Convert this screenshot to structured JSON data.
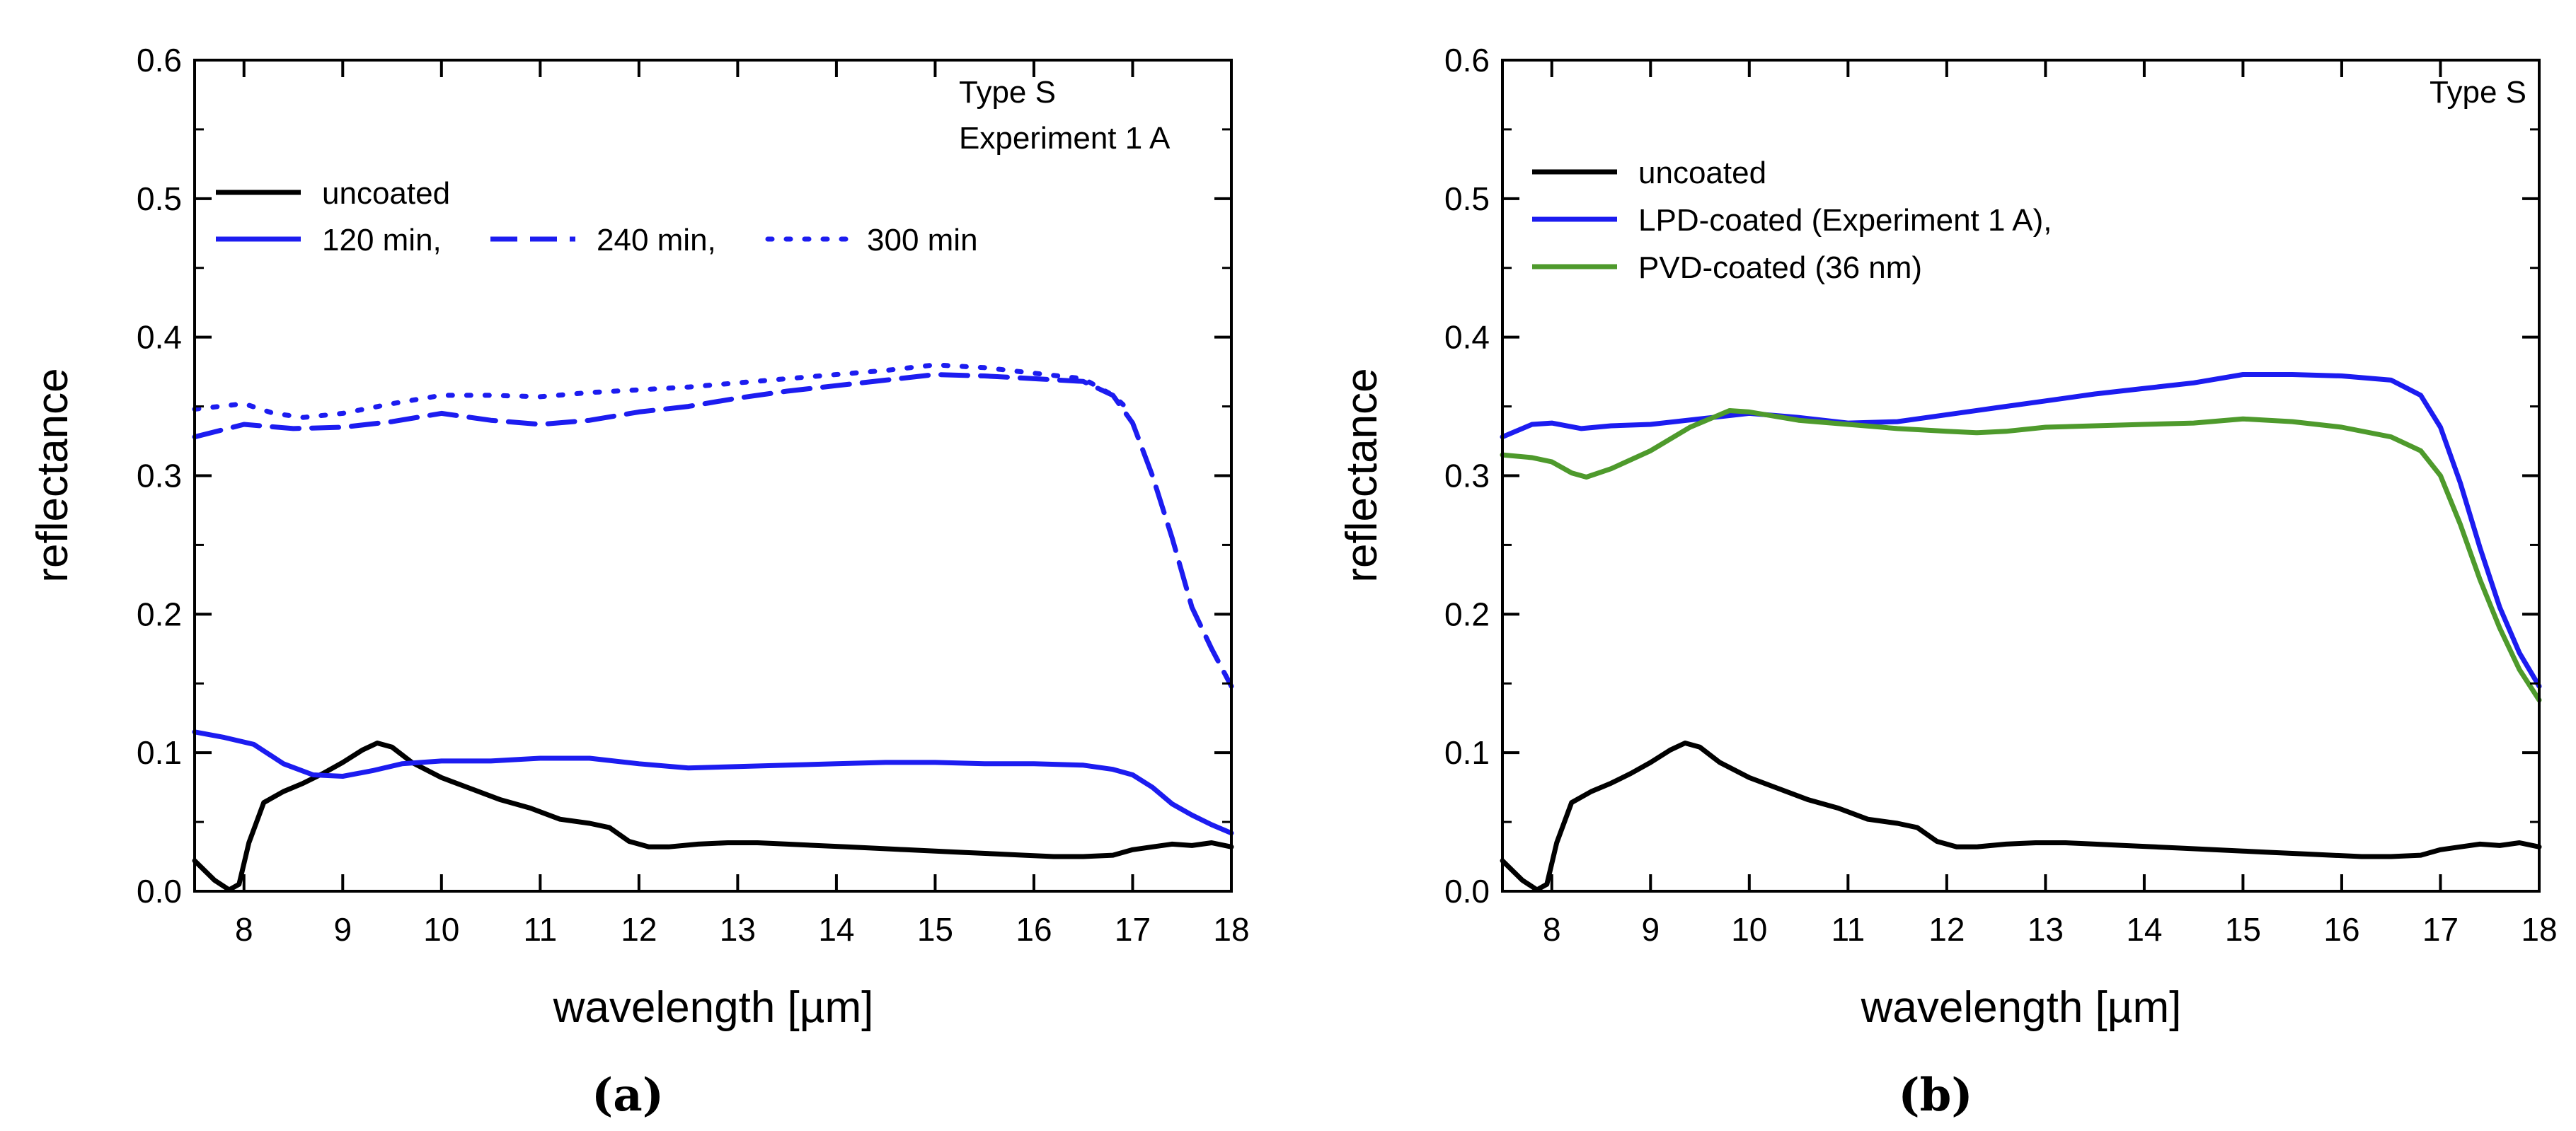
{
  "chart_data": [
    {
      "type": "line",
      "panel_label": "(a)",
      "xlabel": "wavelength [µm]",
      "ylabel": "reflectance",
      "xlim": [
        7.5,
        18
      ],
      "ylim": [
        0,
        0.6
      ],
      "xticks": [
        "8",
        "9",
        "10",
        "11",
        "12",
        "13",
        "14",
        "15",
        "16",
        "17",
        "18"
      ],
      "yticks": [
        "0.0",
        "0.1",
        "0.2",
        "0.3",
        "0.4",
        "0.5",
        "0.6"
      ],
      "annotations": [
        "Type S",
        "Experiment 1 A"
      ],
      "legend_labels": [
        "uncoated",
        "120 min,",
        "240 min,",
        "300 min"
      ],
      "series": [
        {
          "name": "uncoated",
          "color": "#000000",
          "dash": "solid",
          "x": [
            7.5,
            7.7,
            7.85,
            7.95,
            8.05,
            8.2,
            8.4,
            8.6,
            8.8,
            9.0,
            9.2,
            9.35,
            9.5,
            9.7,
            10.0,
            10.3,
            10.6,
            10.9,
            11.2,
            11.5,
            11.7,
            11.9,
            12.1,
            12.3,
            12.6,
            12.9,
            13.2,
            13.5,
            13.8,
            14.1,
            14.4,
            14.7,
            15.0,
            15.3,
            15.6,
            15.9,
            16.2,
            16.5,
            16.8,
            17.0,
            17.2,
            17.4,
            17.6,
            17.8,
            18.0
          ],
          "y": [
            0.022,
            0.008,
            0.001,
            0.005,
            0.035,
            0.064,
            0.072,
            0.078,
            0.085,
            0.093,
            0.102,
            0.107,
            0.104,
            0.093,
            0.082,
            0.074,
            0.066,
            0.06,
            0.052,
            0.049,
            0.046,
            0.036,
            0.032,
            0.032,
            0.034,
            0.035,
            0.035,
            0.034,
            0.033,
            0.032,
            0.031,
            0.03,
            0.029,
            0.028,
            0.027,
            0.026,
            0.025,
            0.025,
            0.026,
            0.03,
            0.032,
            0.034,
            0.033,
            0.035,
            0.032
          ]
        },
        {
          "name": "120 min",
          "color": "#1c1cf0",
          "dash": "solid",
          "x": [
            7.5,
            7.8,
            8.1,
            8.4,
            8.7,
            9.0,
            9.3,
            9.6,
            10.0,
            10.5,
            11.0,
            11.5,
            12.0,
            12.5,
            13.0,
            13.5,
            14.0,
            14.5,
            15.0,
            15.5,
            16.0,
            16.5,
            16.8,
            17.0,
            17.2,
            17.4,
            17.6,
            17.8,
            18.0
          ],
          "y": [
            0.115,
            0.111,
            0.106,
            0.092,
            0.084,
            0.083,
            0.087,
            0.092,
            0.094,
            0.094,
            0.096,
            0.096,
            0.092,
            0.089,
            0.09,
            0.091,
            0.092,
            0.093,
            0.093,
            0.092,
            0.092,
            0.091,
            0.088,
            0.084,
            0.075,
            0.063,
            0.055,
            0.048,
            0.042
          ]
        },
        {
          "name": "240 min",
          "color": "#1c1cf0",
          "dash": "long-dash",
          "x": [
            7.5,
            8.0,
            8.5,
            9.0,
            9.5,
            10.0,
            10.5,
            11.0,
            11.5,
            12.0,
            12.5,
            13.0,
            13.5,
            14.0,
            14.5,
            15.0,
            15.5,
            16.0,
            16.5,
            16.8,
            17.0,
            17.2,
            17.4,
            17.6,
            17.8,
            18.0
          ],
          "y": [
            0.328,
            0.337,
            0.334,
            0.335,
            0.339,
            0.345,
            0.34,
            0.337,
            0.34,
            0.346,
            0.35,
            0.356,
            0.361,
            0.365,
            0.369,
            0.373,
            0.372,
            0.37,
            0.368,
            0.358,
            0.338,
            0.3,
            0.255,
            0.205,
            0.175,
            0.148
          ]
        },
        {
          "name": "300 min",
          "color": "#1c1cf0",
          "dash": "dotted",
          "x": [
            7.5,
            8.0,
            8.3,
            8.6,
            9.0,
            9.5,
            10.0,
            10.5,
            11.0,
            11.5,
            12.0,
            12.5,
            13.0,
            13.5,
            14.0,
            14.5,
            15.0,
            15.5,
            16.0,
            16.5,
            16.8,
            17.0
          ],
          "y": [
            0.348,
            0.352,
            0.345,
            0.342,
            0.345,
            0.352,
            0.358,
            0.358,
            0.357,
            0.36,
            0.362,
            0.364,
            0.367,
            0.37,
            0.373,
            0.376,
            0.38,
            0.378,
            0.374,
            0.37,
            0.358,
            0.345
          ]
        }
      ]
    },
    {
      "type": "line",
      "panel_label": "(b)",
      "xlabel": "wavelength [µm]",
      "ylabel": "reflectance",
      "xlim": [
        7.5,
        18
      ],
      "ylim": [
        0,
        0.6
      ],
      "xticks": [
        "8",
        "9",
        "10",
        "11",
        "12",
        "13",
        "14",
        "15",
        "16",
        "17",
        "18"
      ],
      "yticks": [
        "0.0",
        "0.1",
        "0.2",
        "0.3",
        "0.4",
        "0.5",
        "0.6"
      ],
      "annotations": [
        "Type S"
      ],
      "legend_labels": [
        "uncoated",
        "LPD-coated (Experiment 1 A),",
        "PVD-coated (36 nm)"
      ],
      "series": [
        {
          "name": "uncoated",
          "color": "#000000",
          "dash": "solid",
          "x": [
            7.5,
            7.7,
            7.85,
            7.95,
            8.05,
            8.2,
            8.4,
            8.6,
            8.8,
            9.0,
            9.2,
            9.35,
            9.5,
            9.7,
            10.0,
            10.3,
            10.6,
            10.9,
            11.2,
            11.5,
            11.7,
            11.9,
            12.1,
            12.3,
            12.6,
            12.9,
            13.2,
            13.5,
            13.8,
            14.1,
            14.4,
            14.7,
            15.0,
            15.3,
            15.6,
            15.9,
            16.2,
            16.5,
            16.8,
            17.0,
            17.2,
            17.4,
            17.6,
            17.8,
            18.0
          ],
          "y": [
            0.022,
            0.008,
            0.001,
            0.005,
            0.035,
            0.064,
            0.072,
            0.078,
            0.085,
            0.093,
            0.102,
            0.107,
            0.104,
            0.093,
            0.082,
            0.074,
            0.066,
            0.06,
            0.052,
            0.049,
            0.046,
            0.036,
            0.032,
            0.032,
            0.034,
            0.035,
            0.035,
            0.034,
            0.033,
            0.032,
            0.031,
            0.03,
            0.029,
            0.028,
            0.027,
            0.026,
            0.025,
            0.025,
            0.026,
            0.03,
            0.032,
            0.034,
            0.033,
            0.035,
            0.032
          ]
        },
        {
          "name": "LPD-coated (Experiment 1 A)",
          "color": "#1c1cf0",
          "dash": "solid",
          "x": [
            7.5,
            7.8,
            8.0,
            8.3,
            8.6,
            9.0,
            9.5,
            10.0,
            10.5,
            11.0,
            11.5,
            12.0,
            12.5,
            13.0,
            13.5,
            14.0,
            14.5,
            15.0,
            15.5,
            16.0,
            16.5,
            16.8,
            17.0,
            17.2,
            17.4,
            17.6,
            17.8,
            18.0
          ],
          "y": [
            0.328,
            0.337,
            0.338,
            0.334,
            0.336,
            0.337,
            0.341,
            0.345,
            0.342,
            0.338,
            0.339,
            0.344,
            0.349,
            0.354,
            0.359,
            0.363,
            0.367,
            0.373,
            0.373,
            0.372,
            0.369,
            0.358,
            0.335,
            0.295,
            0.248,
            0.205,
            0.172,
            0.148
          ]
        },
        {
          "name": "PVD-coated (36 nm)",
          "color": "#4e9a2c",
          "dash": "solid",
          "x": [
            7.5,
            7.8,
            8.0,
            8.2,
            8.35,
            8.6,
            9.0,
            9.4,
            9.8,
            10.0,
            10.5,
            11.0,
            11.5,
            12.0,
            12.3,
            12.6,
            13.0,
            13.5,
            14.0,
            14.5,
            15.0,
            15.5,
            16.0,
            16.5,
            16.8,
            17.0,
            17.2,
            17.4,
            17.6,
            17.8,
            18.0
          ],
          "y": [
            0.315,
            0.313,
            0.31,
            0.302,
            0.299,
            0.305,
            0.318,
            0.335,
            0.347,
            0.346,
            0.34,
            0.337,
            0.334,
            0.332,
            0.331,
            0.332,
            0.335,
            0.336,
            0.337,
            0.338,
            0.341,
            0.339,
            0.335,
            0.328,
            0.318,
            0.3,
            0.265,
            0.225,
            0.19,
            0.16,
            0.138
          ]
        }
      ]
    }
  ]
}
